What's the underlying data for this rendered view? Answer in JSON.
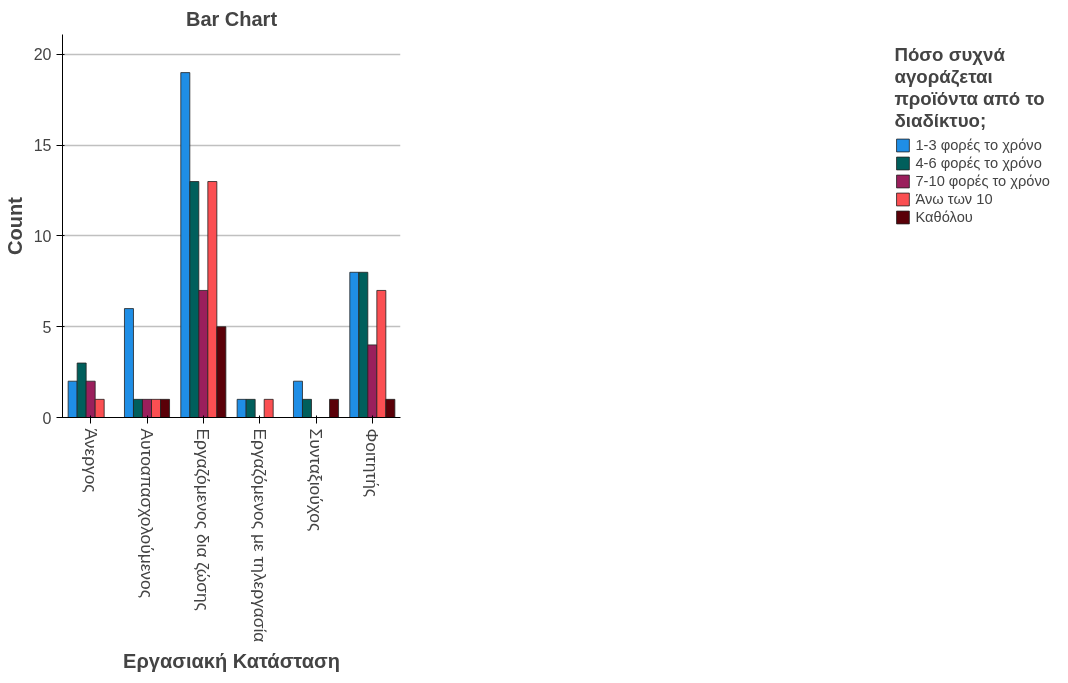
{
  "chart_data": {
    "type": "bar",
    "title": "Bar Chart",
    "xlabel": "Εργασιακή Κατάσταση",
    "ylabel": "Count",
    "legend_title": "Πόσο συχνά αγοράζεται προϊόντα από το διαδίκτυο;",
    "categories": [
      "Άνεργος",
      "Αυτοαπασχολούμενος",
      "Εργαζόμενος δια ζώσης",
      "Εργαζόμενος με τηλεργασία",
      "Συνταξιούχος",
      "Φοιτητής"
    ],
    "series": [
      {
        "name": "1-3 φορές το χρόνο",
        "color": "#1f8ee6",
        "values": [
          2,
          6,
          19,
          1,
          2,
          8
        ]
      },
      {
        "name": "4-6 φορές το χρόνο",
        "color": "#005f5c",
        "values": [
          3,
          1,
          13,
          1,
          1,
          8
        ]
      },
      {
        "name": "7-10 φορές το χρόνο",
        "color": "#9a1f5c",
        "values": [
          2,
          1,
          7,
          null,
          null,
          4
        ]
      },
      {
        "name": "Άνω των 10",
        "color": "#fb4f52",
        "values": [
          1,
          1,
          13,
          1,
          null,
          7
        ]
      },
      {
        "name": "Καθόλου",
        "color": "#5a0008",
        "values": [
          null,
          1,
          5,
          null,
          1,
          1
        ]
      }
    ],
    "ylim": [
      0,
      21.1
    ],
    "yticks": [
      0,
      5,
      10,
      15,
      20
    ],
    "grid": "y",
    "legend": "right"
  }
}
